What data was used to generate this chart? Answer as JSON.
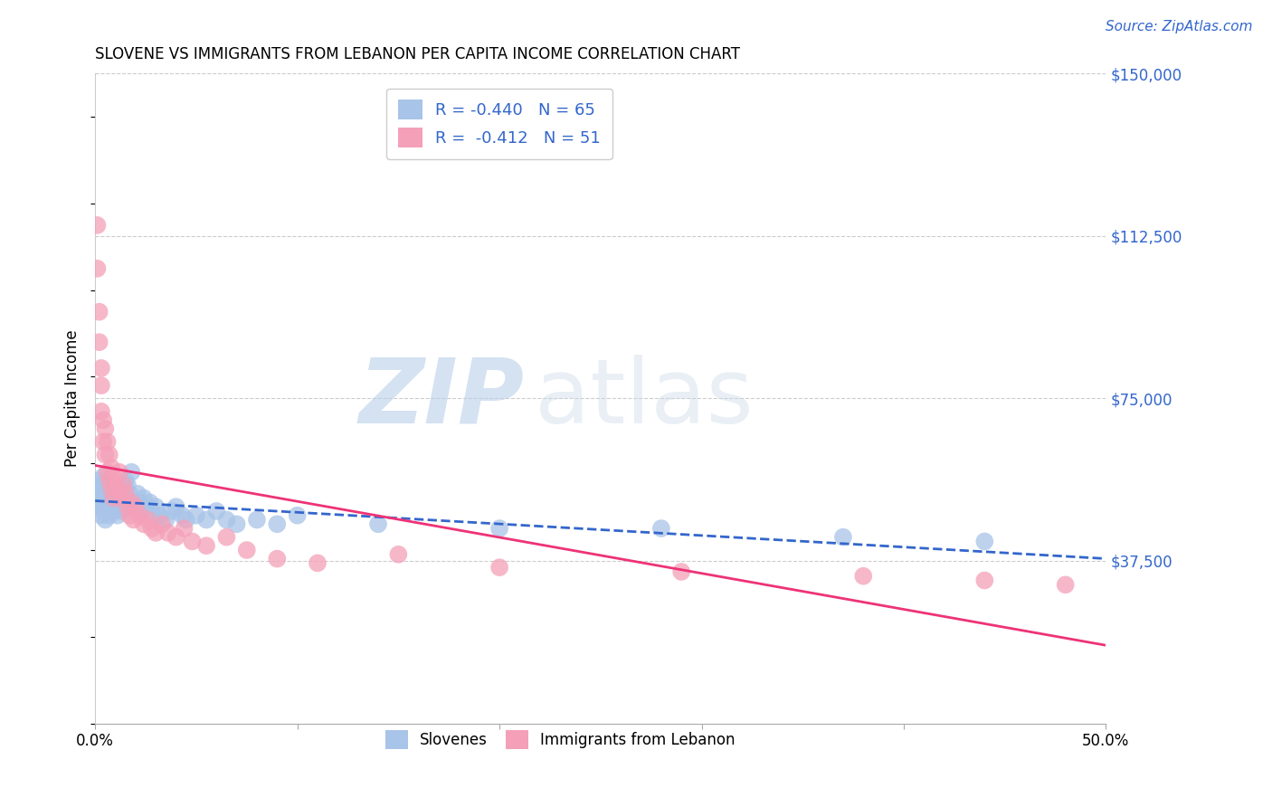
{
  "title": "SLOVENE VS IMMIGRANTS FROM LEBANON PER CAPITA INCOME CORRELATION CHART",
  "source": "Source: ZipAtlas.com",
  "ylabel": "Per Capita Income",
  "xlim": [
    0.0,
    0.5
  ],
  "ylim": [
    0,
    150000
  ],
  "yticks": [
    37500,
    75000,
    112500,
    150000
  ],
  "ytick_labels": [
    "$37,500",
    "$75,000",
    "$112,500",
    "$150,000"
  ],
  "xticks": [
    0.0,
    0.1,
    0.2,
    0.3,
    0.4,
    0.5
  ],
  "xtick_labels": [
    "0.0%",
    "",
    "",
    "",
    "",
    "50.0%"
  ],
  "bg_color": "#ffffff",
  "grid_color": "#cccccc",
  "slovene_color": "#a8c4e8",
  "lebanon_color": "#f4a0b8",
  "slovene_line_color": "#3366cc",
  "lebanon_line_color": "#ee3377",
  "R_slovene": -0.44,
  "N_slovene": 65,
  "R_lebanon": -0.412,
  "N_lebanon": 51,
  "legend_label_slovene": "Slovenes",
  "legend_label_lebanon": "Immigrants from Lebanon",
  "watermark_zip": "ZIP",
  "watermark_atlas": "atlas",
  "slovene_points_x": [
    0.001,
    0.001,
    0.002,
    0.002,
    0.002,
    0.003,
    0.003,
    0.003,
    0.004,
    0.004,
    0.004,
    0.005,
    0.005,
    0.005,
    0.006,
    0.006,
    0.007,
    0.007,
    0.007,
    0.008,
    0.008,
    0.009,
    0.009,
    0.01,
    0.01,
    0.011,
    0.011,
    0.012,
    0.013,
    0.013,
    0.014,
    0.015,
    0.015,
    0.016,
    0.017,
    0.018,
    0.019,
    0.02,
    0.021,
    0.022,
    0.023,
    0.024,
    0.025,
    0.027,
    0.028,
    0.03,
    0.032,
    0.035,
    0.038,
    0.04,
    0.043,
    0.045,
    0.05,
    0.055,
    0.06,
    0.065,
    0.07,
    0.08,
    0.09,
    0.1,
    0.14,
    0.2,
    0.28,
    0.37,
    0.44
  ],
  "slovene_points_y": [
    54000,
    52000,
    56000,
    53000,
    50000,
    55000,
    51000,
    48000,
    57000,
    53000,
    49000,
    54000,
    51000,
    47000,
    53000,
    50000,
    54000,
    51000,
    48000,
    53000,
    51000,
    52000,
    49000,
    54000,
    50000,
    52000,
    48000,
    51000,
    53000,
    49000,
    52000,
    56000,
    50000,
    55000,
    53000,
    58000,
    51000,
    50000,
    53000,
    51000,
    49000,
    52000,
    50000,
    51000,
    49000,
    50000,
    48000,
    47000,
    49000,
    50000,
    48000,
    47000,
    48000,
    47000,
    49000,
    47000,
    46000,
    47000,
    46000,
    48000,
    46000,
    45000,
    45000,
    43000,
    42000
  ],
  "lebanon_points_x": [
    0.001,
    0.001,
    0.002,
    0.002,
    0.003,
    0.003,
    0.003,
    0.004,
    0.004,
    0.005,
    0.005,
    0.006,
    0.006,
    0.007,
    0.007,
    0.008,
    0.008,
    0.009,
    0.009,
    0.01,
    0.011,
    0.012,
    0.013,
    0.014,
    0.015,
    0.016,
    0.017,
    0.018,
    0.019,
    0.02,
    0.022,
    0.024,
    0.026,
    0.028,
    0.03,
    0.033,
    0.036,
    0.04,
    0.044,
    0.048,
    0.055,
    0.065,
    0.075,
    0.09,
    0.11,
    0.15,
    0.2,
    0.29,
    0.38,
    0.44,
    0.48
  ],
  "lebanon_points_y": [
    115000,
    105000,
    95000,
    88000,
    82000,
    78000,
    72000,
    70000,
    65000,
    68000,
    62000,
    65000,
    58000,
    62000,
    56000,
    59000,
    54000,
    57000,
    52000,
    55000,
    54000,
    58000,
    52000,
    55000,
    53000,
    50000,
    48000,
    51000,
    47000,
    50000,
    48000,
    46000,
    47000,
    45000,
    44000,
    46000,
    44000,
    43000,
    45000,
    42000,
    41000,
    43000,
    40000,
    38000,
    37000,
    39000,
    36000,
    35000,
    34000,
    33000,
    32000
  ]
}
